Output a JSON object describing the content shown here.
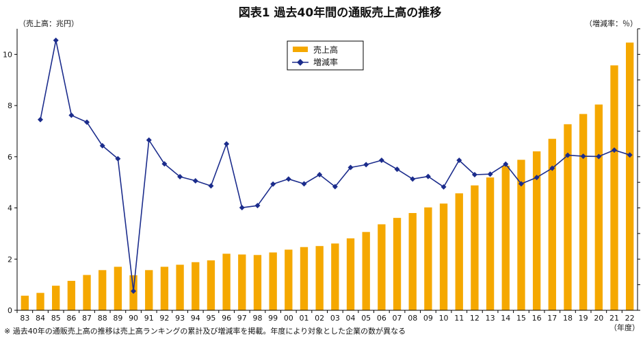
{
  "chart_data": {
    "type": "bar",
    "title": "図表1 過去40年間の通販売上高の推移",
    "y_left_label": "（売上高：兆円）",
    "y_right_label": "（増減率：％）",
    "x_unit_label": "（年度）",
    "note": "※ 過去40年の通販売上高の推移は売上高ランキングの累計及び増減率を掲載。年度により対象とした企業の数が異なる",
    "left_ylim": [
      0,
      11
    ],
    "left_ticks": [
      "0",
      "2",
      "4",
      "6",
      "8",
      "10"
    ],
    "legend_position": "top-center",
    "grid": false,
    "categories": [
      "83",
      "84",
      "85",
      "86",
      "87",
      "88",
      "89",
      "90",
      "91",
      "92",
      "93",
      "94",
      "95",
      "96",
      "97",
      "98",
      "99",
      "00",
      "01",
      "02",
      "03",
      "04",
      "05",
      "06",
      "07",
      "08",
      "09",
      "10",
      "11",
      "12",
      "13",
      "14",
      "15",
      "16",
      "17",
      "18",
      "19",
      "20",
      "21",
      "22"
    ],
    "series": [
      {
        "name": "売上高",
        "type": "bar",
        "axis": "left",
        "color": "#f5a800",
        "values": [
          0.57,
          0.68,
          0.96,
          1.15,
          1.38,
          1.57,
          1.7,
          1.37,
          1.57,
          1.7,
          1.78,
          1.88,
          1.95,
          2.21,
          2.18,
          2.16,
          2.26,
          2.37,
          2.47,
          2.51,
          2.61,
          2.81,
          3.06,
          3.36,
          3.61,
          3.8,
          4.02,
          4.17,
          4.57,
          4.88,
          5.19,
          5.65,
          5.88,
          6.21,
          6.7,
          7.27,
          7.67,
          8.04,
          9.57,
          10.46
        ]
      },
      {
        "name": "増減率",
        "type": "line",
        "axis": "right",
        "color": "#1b2c8c",
        "marker": "diamond",
        "values_plotted_on_left_scale": [
          null,
          7.45,
          10.55,
          7.62,
          7.35,
          6.43,
          5.92,
          0.75,
          6.65,
          5.72,
          5.22,
          5.06,
          4.86,
          6.5,
          4.01,
          4.09,
          4.93,
          5.13,
          4.94,
          5.3,
          4.83,
          5.58,
          5.69,
          5.86,
          5.51,
          5.13,
          5.23,
          4.82,
          5.86,
          5.3,
          5.32,
          5.71,
          4.94,
          5.19,
          5.55,
          6.06,
          6.02,
          6.01,
          6.26,
          6.07
        ]
      }
    ]
  }
}
